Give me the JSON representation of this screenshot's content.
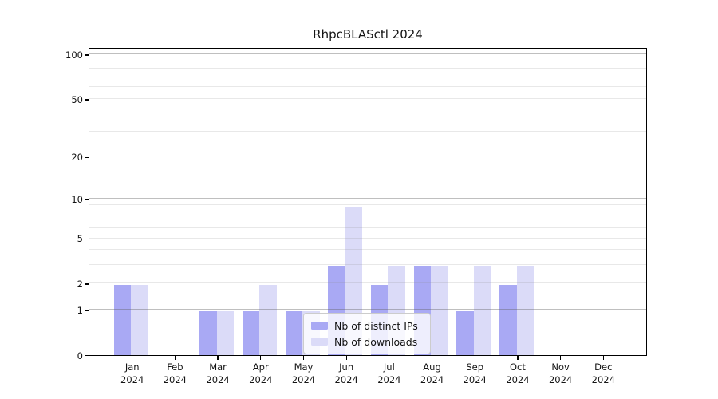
{
  "figure": {
    "title": "RhpcBLASctl 2024"
  },
  "chart_data": {
    "type": "bar",
    "title": "RhpcBLASctl 2024",
    "categories": [
      "Jan 2024",
      "Feb 2024",
      "Mar 2024",
      "Apr 2024",
      "May 2024",
      "Jun 2024",
      "Jul 2024",
      "Aug 2024",
      "Sep 2024",
      "Oct 2024",
      "Nov 2024",
      "Dec 2024"
    ],
    "x_tick_line1": [
      "Jan",
      "Feb",
      "Mar",
      "Apr",
      "May",
      "Jun",
      "Jul",
      "Aug",
      "Sep",
      "Oct",
      "Nov",
      "Dec"
    ],
    "x_tick_line2": [
      "2024",
      "2024",
      "2024",
      "2024",
      "2024",
      "2024",
      "2024",
      "2024",
      "2024",
      "2024",
      "2024",
      "2024"
    ],
    "series": [
      {
        "name": "Nb of distinct IPs",
        "color": "#a9a9f4",
        "values": [
          2,
          0,
          1,
          1,
          1,
          3,
          2,
          3,
          1,
          2,
          0,
          0
        ]
      },
      {
        "name": "Nb of downloads",
        "color": "#dbdbf8",
        "values": [
          2,
          0,
          1,
          2,
          1,
          9,
          3,
          3,
          3,
          3,
          0,
          0
        ]
      }
    ],
    "xlabel": "",
    "ylabel": "",
    "y_ticks": [
      0,
      1,
      2,
      5,
      10,
      20,
      50,
      100
    ],
    "y_minor_gridlines": [
      2,
      3,
      4,
      5,
      6,
      7,
      8,
      9,
      20,
      30,
      40,
      50,
      60,
      70,
      80,
      90
    ],
    "y_major_gridlines": [
      1,
      10,
      100
    ],
    "y_scale": "log10(1+v)",
    "ylim": [
      0,
      110
    ],
    "grid": true,
    "legend": {
      "position": "lower center",
      "entries": [
        "Nb of distinct IPs",
        "Nb of downloads"
      ]
    }
  },
  "colors": {
    "bar_ips": "#a9a9f4",
    "bar_downloads": "#dbdbf8",
    "spine": "#000000",
    "text": "#141414",
    "legend_border": "#cccccc",
    "legend_background": "rgba(255,255,255,0.8)"
  }
}
